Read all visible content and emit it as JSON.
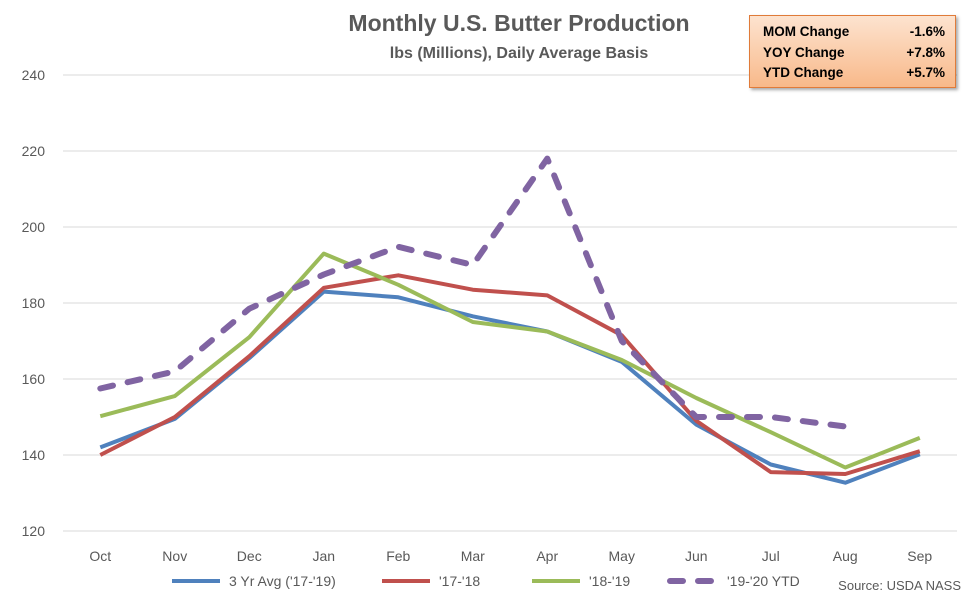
{
  "chart_data": {
    "type": "line",
    "title": "Monthly U.S. Butter Production",
    "subtitle": "lbs (Millions), Daily Average Basis",
    "categories": [
      "Oct",
      "Nov",
      "Dec",
      "Jan",
      "Feb",
      "Mar",
      "Apr",
      "May",
      "Jun",
      "Jul",
      "Aug",
      "Sep"
    ],
    "ylim": [
      120,
      240
    ],
    "yticks": [
      120,
      140,
      160,
      180,
      200,
      220,
      240
    ],
    "grid": true,
    "legend_position": "bottom",
    "series": [
      {
        "name": "3 Yr Avg ('17-'19)",
        "color": "#4f81bd",
        "dashed": false,
        "values": [
          142,
          149.5,
          165.5,
          183,
          181.5,
          176.5,
          172.5,
          164.5,
          148,
          137.5,
          132.7,
          140.2
        ]
      },
      {
        "name": "'17-'18",
        "color": "#c0504d",
        "dashed": false,
        "values": [
          140,
          150,
          166,
          184,
          187.3,
          183.5,
          182,
          171.5,
          149,
          135.5,
          135,
          141
        ]
      },
      {
        "name": "'18-'19",
        "color": "#9bbb59",
        "dashed": false,
        "values": [
          150.2,
          155.5,
          171,
          193,
          184.8,
          175,
          172.5,
          165,
          155,
          146,
          136.7,
          144.5
        ]
      },
      {
        "name": "'19-'20 YTD",
        "color": "#8064a2",
        "dashed": true,
        "values": [
          157.5,
          162,
          178.5,
          187.5,
          194.8,
          190,
          218,
          170,
          150,
          150,
          147.5,
          null
        ]
      }
    ],
    "source": "Source: USDA NASS"
  },
  "stats": [
    {
      "label": "MOM Change",
      "value": "-1.6%"
    },
    {
      "label": "YOY Change",
      "value": "+7.8%"
    },
    {
      "label": "YTD Change",
      "value": "+5.7%"
    }
  ]
}
